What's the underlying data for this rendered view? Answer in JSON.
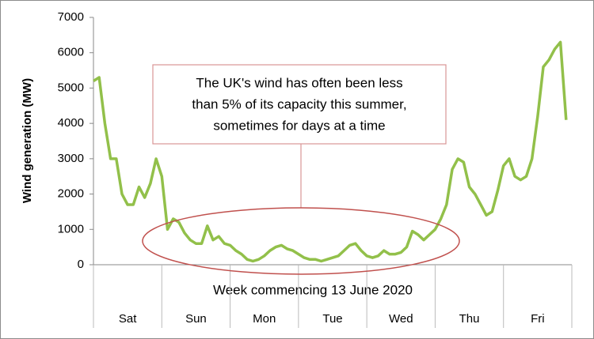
{
  "chart_data": {
    "type": "line",
    "y_label": "Wind generation (MW)",
    "x_label": "Week commencing 13 June 2020",
    "annotation": [
      "The UK's wind has often been less",
      "than 5% of its capacity this summer,",
      "sometimes for days at a time"
    ],
    "categories": [
      "Sat",
      "Sun",
      "Mon",
      "Tue",
      "Wed",
      "Thu",
      "Fri"
    ],
    "color": "#92c04a",
    "values": [
      [
        5200,
        5300,
        4000,
        3000,
        3000,
        2000,
        1700,
        1700,
        2200,
        1900,
        2300,
        3000
      ],
      [
        2500,
        1000,
        1300,
        1200,
        900,
        700,
        600,
        600,
        1100,
        700,
        800,
        600
      ],
      [
        550,
        400,
        300,
        150,
        100,
        150,
        250,
        400,
        500,
        550,
        450,
        400
      ],
      [
        300,
        200,
        150,
        150,
        100,
        150,
        200,
        250,
        400,
        550,
        600,
        400
      ],
      [
        250,
        200,
        250,
        400,
        300,
        300,
        350,
        500,
        950,
        850,
        700,
        850
      ],
      [
        1000,
        1300,
        1700,
        2700,
        3000,
        2900,
        2200,
        2000,
        1700,
        1400,
        1500,
        2100
      ],
      [
        2800,
        3000,
        2500,
        2400,
        2500,
        3000,
        4200,
        5600,
        5800,
        6100,
        6300,
        4100
      ]
    ],
    "ylim": [
      0,
      7000
    ],
    "yticks": [
      0,
      1000,
      2000,
      3000,
      4000,
      5000,
      6000,
      7000
    ]
  }
}
